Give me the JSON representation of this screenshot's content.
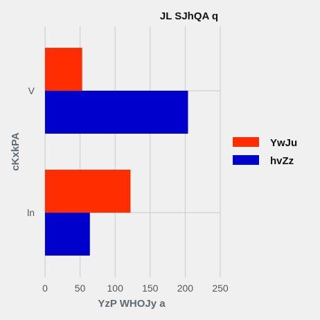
{
  "chart_data": {
    "type": "bar",
    "orientation": "horizontal",
    "title": "JL SJhQA q",
    "xlabel": "YzP WHOJy a",
    "ylabel": "cKxkPA",
    "categories": [
      "V",
      "ln"
    ],
    "series": [
      {
        "name": "YwJu",
        "values": [
          53,
          122
        ],
        "color": "#ff2d00"
      },
      {
        "name": "hvZz",
        "values": [
          204,
          64
        ],
        "color": "#0000cc"
      }
    ],
    "xlim": [
      0,
      250
    ],
    "xticks": [
      "0",
      "50",
      "100",
      "150",
      "200",
      "250"
    ],
    "grid": true,
    "legend_position": "right"
  }
}
